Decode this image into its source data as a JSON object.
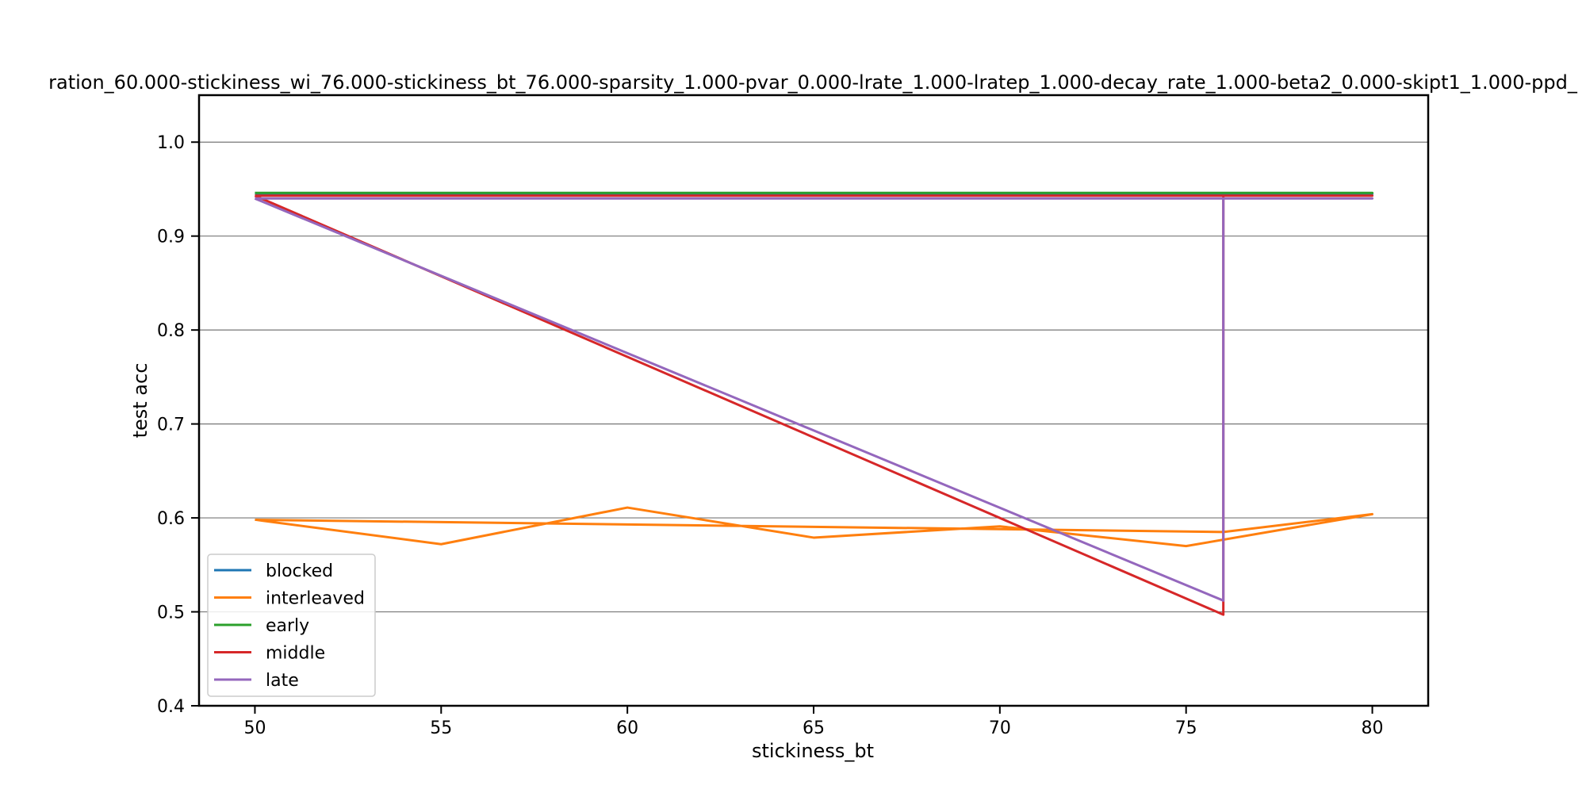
{
  "chart_data": {
    "type": "line",
    "title": "ration_60.000-stickiness_wi_76.000-stickiness_bt_76.000-sparsity_1.000-pvar_0.000-lrate_1.000-lratep_1.000-decay_rate_1.000-beta2_0.000-skipt1_1.000-ppd_",
    "xlabel": "stickiness_bt",
    "ylabel": "test acc",
    "xlim": [
      48.5,
      81.5
    ],
    "ylim": [
      0.4,
      1.05
    ],
    "xticks": [
      50,
      55,
      60,
      65,
      70,
      75,
      80
    ],
    "yticks": [
      0.4,
      0.5,
      0.6,
      0.7,
      0.8,
      0.9,
      1.0
    ],
    "ytick_labels": [
      "0.4",
      "0.5",
      "0.6",
      "0.7",
      "0.8",
      "0.9",
      "1.0"
    ],
    "grid": "horizontal",
    "legend_position": "lower-left",
    "series": [
      {
        "name": "blocked",
        "color": "#1f77b4",
        "x": [
          50,
          55,
          60,
          65,
          70,
          75,
          80,
          76,
          76,
          50
        ],
        "y": [
          0.945,
          0.945,
          0.945,
          0.945,
          0.945,
          0.945,
          0.945,
          0.945,
          0.945,
          0.945
        ]
      },
      {
        "name": "interleaved",
        "color": "#ff7f0e",
        "x": [
          50,
          55,
          60,
          65,
          70,
          75,
          80,
          76,
          76,
          50
        ],
        "y": [
          0.598,
          0.572,
          0.611,
          0.579,
          0.591,
          0.57,
          0.604,
          0.585,
          0.585,
          0.598
        ]
      },
      {
        "name": "early",
        "color": "#2ca02c",
        "x": [
          50,
          55,
          60,
          65,
          70,
          75,
          80,
          76,
          76,
          50
        ],
        "y": [
          0.946,
          0.946,
          0.946,
          0.946,
          0.946,
          0.946,
          0.946,
          0.946,
          0.946,
          0.946
        ]
      },
      {
        "name": "middle",
        "color": "#d62728",
        "x": [
          50,
          55,
          60,
          65,
          70,
          75,
          80,
          76,
          76,
          50
        ],
        "y": [
          0.943,
          0.943,
          0.943,
          0.943,
          0.943,
          0.943,
          0.943,
          0.943,
          0.497,
          0.943
        ]
      },
      {
        "name": "late",
        "color": "#9467bd",
        "x": [
          50,
          55,
          60,
          65,
          70,
          75,
          80,
          76,
          76,
          50
        ],
        "y": [
          0.94,
          0.94,
          0.94,
          0.94,
          0.94,
          0.94,
          0.94,
          0.94,
          0.512,
          0.94
        ]
      }
    ]
  }
}
